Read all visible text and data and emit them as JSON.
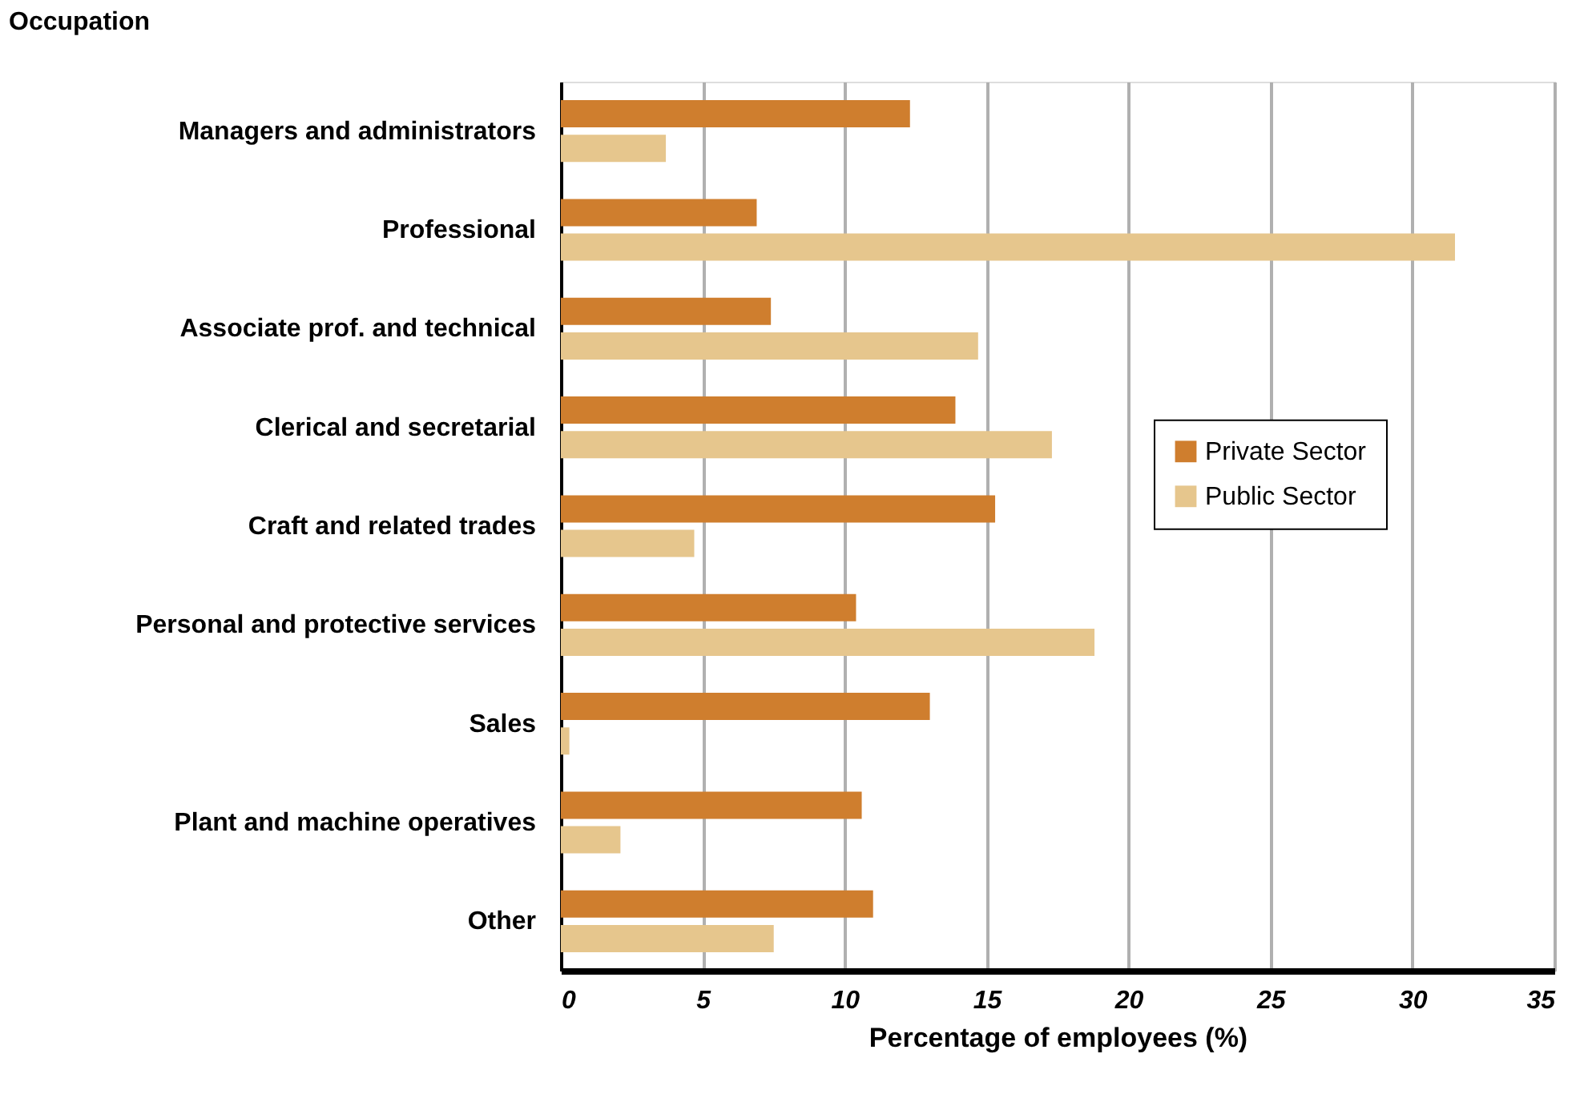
{
  "chart_data": {
    "type": "bar",
    "orientation": "horizontal",
    "xlabel": "Percentage of employees (%)",
    "ylabel": "Occupation",
    "categories": [
      "Managers and administrators",
      "Professional",
      "Associate prof. and technical",
      "Clerical and secretarial",
      "Craft and related trades",
      "Personal and protective services",
      "Sales",
      "Plant and machine operatives",
      "Other"
    ],
    "series": [
      {
        "name": "Private Sector",
        "color": "#cf7e2e",
        "values": [
          12.3,
          6.9,
          7.4,
          13.9,
          15.3,
          10.4,
          13.0,
          10.6,
          11.0
        ]
      },
      {
        "name": "Public Sector",
        "color": "#e6c68d",
        "values": [
          3.7,
          31.5,
          14.7,
          17.3,
          4.7,
          18.8,
          0.3,
          2.1,
          7.5
        ]
      }
    ],
    "xlim": [
      0,
      35
    ],
    "xticks": [
      0,
      5,
      10,
      15,
      20,
      25,
      30,
      35
    ],
    "grid": "x",
    "legend": "right"
  }
}
